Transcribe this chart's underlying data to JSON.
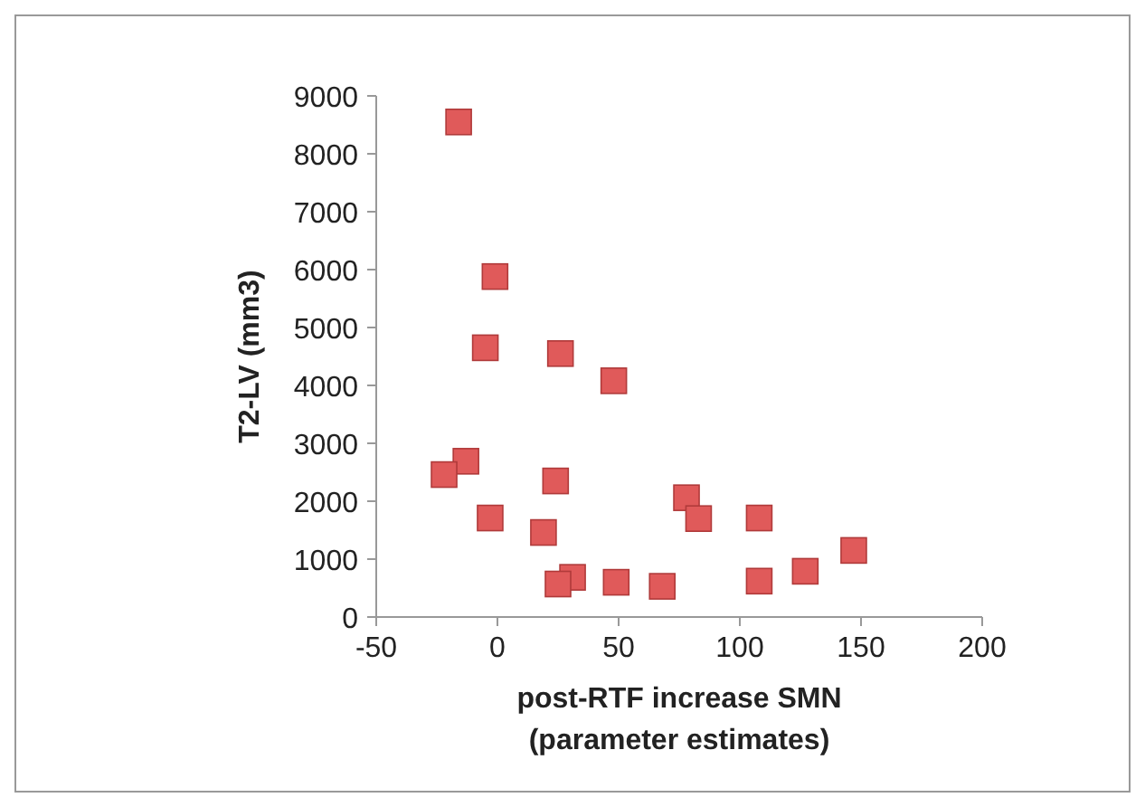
{
  "chart_data": {
    "type": "scatter",
    "xlabel": "post-RTF increase SMN (parameter estimates)",
    "ylabel": "T2-LV (mm3)",
    "x": [
      -16,
      -1,
      -5,
      26,
      48,
      -13,
      -22,
      24,
      -3,
      78,
      83,
      108,
      19,
      147,
      127,
      31,
      25,
      49,
      68,
      108
    ],
    "series": [
      {
        "color": "#e05a5a",
        "values": [
          8550,
          5880,
          4650,
          4550,
          4080,
          2690,
          2460,
          2350,
          1710,
          2060,
          1700,
          1710,
          1460,
          1150,
          790,
          685,
          570,
          600,
          530,
          620
        ]
      }
    ],
    "xlim": [
      -50,
      200
    ],
    "xticks": [
      -50,
      0,
      50,
      100,
      150,
      200
    ],
    "ylim": [
      0,
      9000
    ],
    "yticks": [
      0,
      1000,
      2000,
      3000,
      4000,
      5000,
      6000,
      7000,
      8000,
      9000
    ],
    "grid": false,
    "marker": "square"
  }
}
